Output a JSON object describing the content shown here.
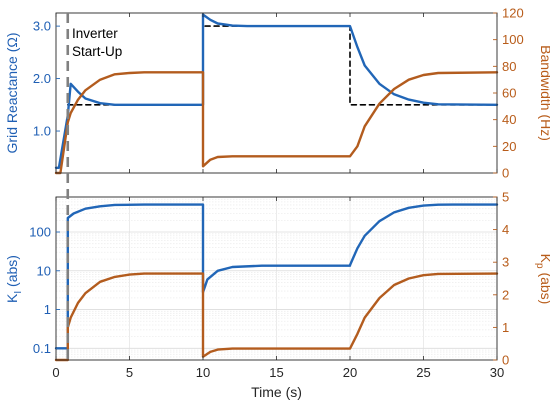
{
  "colors": {
    "left": "#2166b7",
    "right": "#b35c1e",
    "reference": "#000000",
    "startup": "#808080"
  },
  "chart_data": [
    {
      "type": "line",
      "panel": "top",
      "xlabel": "Time (s)",
      "ylabel_left": "Grid Reactance (Ω)",
      "ylabel_right": "Bandwidth (Hz)",
      "xlim": [
        0,
        30
      ],
      "ylim_left": [
        0.2,
        3.25
      ],
      "ylim_right": [
        0,
        120
      ],
      "xticks": [
        0,
        5,
        10,
        15,
        20,
        25,
        30
      ],
      "xtick_labels": [
        "0",
        "5",
        "10",
        "15",
        "20",
        "25",
        "30"
      ],
      "yticks_left": [
        1.0,
        2.0,
        3.0
      ],
      "ytick_labels_left": [
        "1.0",
        "2.0",
        "3.0"
      ],
      "yticks_right": [
        0,
        20,
        40,
        60,
        80,
        100,
        120
      ],
      "ytick_labels_right": [
        "0",
        "20",
        "40",
        "60",
        "80",
        "100",
        "120"
      ],
      "annotation": {
        "lines": [
          "Inverter",
          "Start-Up"
        ],
        "x": 0.8
      },
      "series": [
        {
          "axis": "left",
          "style": "dashed",
          "color": "#000000",
          "x": [
            0.8,
            10,
            10,
            20,
            20,
            30
          ],
          "y": [
            1.5,
            1.5,
            3.0,
            3.0,
            1.5,
            1.5
          ]
        },
        {
          "axis": "left",
          "style": "solid",
          "color": "#2166b7",
          "x": [
            0,
            0.2,
            0.8,
            0.8,
            1.0,
            1.5,
            2.0,
            3.0,
            4.0,
            10,
            10,
            10.5,
            11,
            12,
            13,
            20,
            20.5,
            21,
            22,
            23,
            24,
            25,
            26,
            30
          ],
          "y": [
            0.3,
            0.3,
            1.3,
            1.3,
            1.9,
            1.75,
            1.62,
            1.53,
            1.5,
            1.5,
            3.22,
            3.12,
            3.05,
            3.01,
            3.0,
            3.0,
            2.6,
            2.25,
            1.9,
            1.7,
            1.6,
            1.54,
            1.51,
            1.5
          ]
        },
        {
          "axis": "right",
          "style": "solid",
          "color": "#b35c1e",
          "x": [
            0,
            0.3,
            0.8,
            1.0,
            1.5,
            2.0,
            3.0,
            4.0,
            5.0,
            6.0,
            10,
            10,
            10.5,
            11,
            12,
            20,
            20.5,
            21,
            22,
            23,
            24,
            25,
            26,
            30
          ],
          "y": [
            0,
            0,
            38,
            45,
            55,
            62,
            70,
            74,
            75,
            75.5,
            75.5,
            5,
            10,
            12,
            12.5,
            12.5,
            20,
            35,
            52,
            63,
            70,
            73.5,
            75,
            75.5
          ]
        }
      ]
    },
    {
      "type": "line",
      "panel": "bottom",
      "xlabel": "Time (s)",
      "ylabel_left": "K",
      "ylabel_left_sub": "I",
      "ylabel_left_suffix": " (abs)",
      "ylabel_right": "K",
      "ylabel_right_sub": "p",
      "ylabel_right_suffix": " (abs)",
      "xlim": [
        0,
        30
      ],
      "ylim_left": [
        0.05,
        800
      ],
      "yscale_left": "log",
      "ylim_right": [
        0,
        5
      ],
      "xticks": [
        0,
        5,
        10,
        15,
        20,
        25,
        30
      ],
      "xtick_labels": [
        "0",
        "5",
        "10",
        "15",
        "20",
        "25",
        "30"
      ],
      "yticks_left": [
        0.1,
        1,
        10,
        100
      ],
      "ytick_labels_left": [
        "0.1",
        "1",
        "10",
        "100"
      ],
      "yticks_right": [
        0,
        1,
        2,
        3,
        4,
        5
      ],
      "ytick_labels_right": [
        "0",
        "1",
        "2",
        "3",
        "4",
        "5"
      ],
      "grid": true,
      "series": [
        {
          "axis": "left",
          "style": "solid",
          "color": "#2166b7",
          "x": [
            0,
            0.8,
            0.8,
            1.2,
            2.0,
            3.0,
            4.0,
            6.0,
            10,
            10,
            10.3,
            11,
            12,
            14,
            20,
            20,
            20.5,
            21,
            22,
            23,
            24,
            25,
            26,
            27,
            30
          ],
          "y": [
            0.1,
            0.1,
            230,
            300,
            400,
            460,
            500,
            510,
            510,
            2.8,
            6,
            10,
            12.5,
            13.5,
            13.5,
            14,
            38,
            80,
            190,
            320,
            420,
            480,
            505,
            510,
            510
          ]
        },
        {
          "axis": "right",
          "style": "solid",
          "color": "#b35c1e",
          "x": [
            0,
            0.8,
            0.8,
            1.0,
            1.5,
            2.0,
            3.0,
            4.0,
            5.0,
            6.0,
            10,
            10,
            10.5,
            11,
            12,
            20,
            20.5,
            21,
            22,
            23,
            24,
            25,
            26,
            30
          ],
          "y": [
            0,
            0,
            1.0,
            1.3,
            1.75,
            2.05,
            2.4,
            2.55,
            2.62,
            2.65,
            2.65,
            0.1,
            0.25,
            0.32,
            0.35,
            0.35,
            0.8,
            1.3,
            1.9,
            2.3,
            2.5,
            2.6,
            2.64,
            2.65
          ]
        }
      ]
    }
  ]
}
